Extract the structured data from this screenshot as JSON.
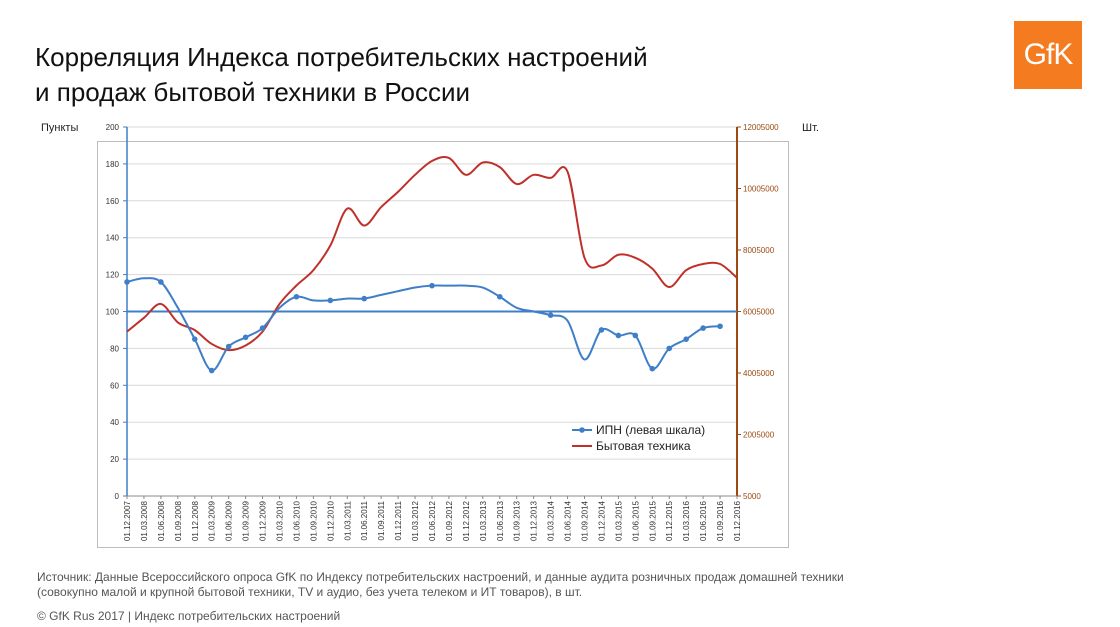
{
  "header": {
    "title_line1": "Корреляция Индекса потребительских настроений",
    "title_line2": "и продаж бытовой техники в России",
    "logo_text": "GfK"
  },
  "colors": {
    "ipn": "#3f7fc7",
    "appliances": "#c0302b",
    "right_axis": "#9c4a12",
    "logo_bg": "#f47b20"
  },
  "chart_data": {
    "type": "line",
    "ylabel_left": "Пункты",
    "ylabel_right": "Шт.",
    "ylim_left": [
      0,
      200
    ],
    "yticks_left": [
      "0",
      "20",
      "40",
      "60",
      "80",
      "100",
      "120",
      "140",
      "160",
      "180",
      "200"
    ],
    "ylim_right": [
      5000,
      12005000
    ],
    "yticks_right": [
      "5000",
      "2005000",
      "4005000",
      "6005000",
      "8005000",
      "10005000",
      "12005000"
    ],
    "reference_line": 100,
    "grid": true,
    "legend_position": "bottom-right",
    "x": [
      "01.12.2007",
      "01.03.2008",
      "01.06.2008",
      "01.09.2008",
      "01.12.2008",
      "01.03.2009",
      "01.06.2009",
      "01.09.2009",
      "01.12.2009",
      "01.03.2010",
      "01.06.2010",
      "01.09.2010",
      "01.12.2010",
      "01.03.2011",
      "01.06.2011",
      "01.09.2011",
      "01.12.2011",
      "01.03.2012",
      "01.06.2012",
      "01.09.2012",
      "01.12.2012",
      "01.03.2013",
      "01.06.2013",
      "01.09.2013",
      "01.12.2013",
      "01.03.2014",
      "01.06.2014",
      "01.09.2014",
      "01.12.2014",
      "01.03.2015",
      "01.06.2015",
      "01.09.2015",
      "01.12.2015",
      "01.03.2016",
      "01.06.2016",
      "01.09.2016",
      "01.12.2016"
    ],
    "series": [
      {
        "name": "ИПН (левая шкала)",
        "axis": "left",
        "marker_every": 1,
        "values": [
          116,
          118,
          116,
          102,
          85,
          68,
          81,
          86,
          91,
          102,
          108,
          106,
          106,
          107,
          107,
          109,
          111,
          113,
          114,
          114,
          114,
          113,
          108,
          102,
          100,
          98,
          95,
          74,
          90,
          87,
          87,
          69,
          80,
          85,
          91,
          92,
          null
        ],
        "marker_indices": [
          0,
          2,
          4,
          5,
          6,
          7,
          8,
          10,
          12,
          14,
          18,
          22,
          25,
          28,
          29,
          30,
          31,
          32,
          33,
          34,
          35,
          36,
          37
        ]
      },
      {
        "name": "Бытовая техника",
        "axis": "right",
        "values": [
          5350000,
          5800000,
          6250000,
          5650000,
          5400000,
          4950000,
          4750000,
          4900000,
          5350000,
          6250000,
          6850000,
          7350000,
          8150000,
          9350000,
          8800000,
          9400000,
          9900000,
          10450000,
          10900000,
          11000000,
          10450000,
          10850000,
          10700000,
          10150000,
          10450000,
          10350000,
          10550000,
          7750000,
          7500000,
          7850000,
          7750000,
          7400000,
          6800000,
          7350000,
          7550000,
          7550000,
          7100000
        ]
      }
    ]
  },
  "source": {
    "line1": "Источник: Данные Всероссийского опроса GfK по Индексу потребительских настроений, и данные аудита розничных продаж домашней техники",
    "line2": "(совокупно малой и крупной бытовой техники, TV и аудио, без учета телеком и ИТ товаров), в шт."
  },
  "footer": {
    "copyright": "© GfK Rus 2017 | Индекс потребительских настроений"
  }
}
